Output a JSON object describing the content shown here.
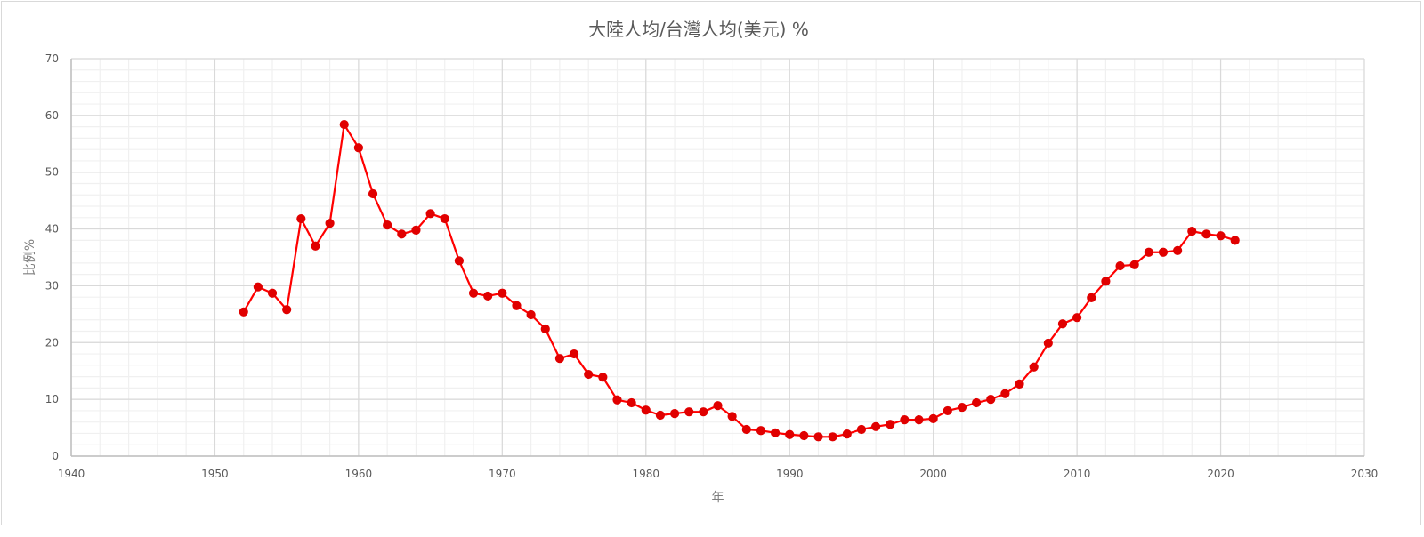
{
  "chart_data": {
    "type": "line",
    "title": "大陸人均/台灣人均(美元) %",
    "xlabel": "年",
    "ylabel": "比例%",
    "xlim": [
      1940,
      2030
    ],
    "ylim": [
      0,
      70
    ],
    "x_ticks": [
      1940,
      1950,
      1960,
      1970,
      1980,
      1990,
      2000,
      2010,
      2020,
      2030
    ],
    "y_ticks": [
      0,
      10,
      20,
      30,
      40,
      50,
      60,
      70
    ],
    "grid": {
      "major": true,
      "minor": true
    },
    "legend": null,
    "series": [
      {
        "name": "大陸人均/台灣人均(美元) %",
        "color": "#ff0000",
        "marker_color": "#e00000",
        "x": [
          1952,
          1953,
          1954,
          1955,
          1956,
          1957,
          1958,
          1959,
          1960,
          1961,
          1962,
          1963,
          1964,
          1965,
          1966,
          1967,
          1968,
          1969,
          1970,
          1971,
          1972,
          1973,
          1974,
          1975,
          1976,
          1977,
          1978,
          1979,
          1980,
          1981,
          1982,
          1983,
          1984,
          1985,
          1986,
          1987,
          1988,
          1989,
          1990,
          1991,
          1992,
          1993,
          1994,
          1995,
          1996,
          1997,
          1998,
          1999,
          2000,
          2001,
          2002,
          2003,
          2004,
          2005,
          2006,
          2007,
          2008,
          2009,
          2010,
          2011,
          2012,
          2013,
          2014,
          2015,
          2016,
          2017,
          2018,
          2019,
          2020,
          2021
        ],
        "values": [
          25.4,
          29.8,
          28.7,
          25.8,
          41.8,
          37.0,
          41.0,
          58.4,
          54.3,
          46.2,
          40.7,
          39.1,
          39.8,
          42.7,
          41.8,
          34.4,
          28.7,
          28.2,
          28.7,
          26.5,
          24.9,
          22.4,
          17.2,
          18.0,
          14.4,
          13.9,
          9.9,
          9.4,
          8.1,
          7.2,
          7.5,
          7.8,
          7.8,
          8.9,
          7.0,
          4.7,
          4.5,
          4.1,
          3.8,
          3.6,
          3.4,
          3.4,
          3.9,
          4.7,
          5.2,
          5.6,
          6.4,
          6.4,
          6.6,
          8.0,
          8.6,
          9.4,
          10.0,
          11.0,
          12.7,
          15.7,
          19.9,
          23.3,
          24.4,
          27.9,
          30.8,
          33.5,
          33.7,
          35.9,
          35.9,
          36.2,
          39.6,
          39.1,
          38.8,
          38.0
        ]
      }
    ]
  }
}
